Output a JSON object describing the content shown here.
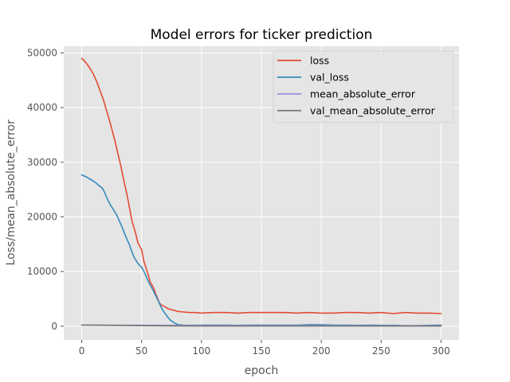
{
  "chart_data": {
    "type": "line",
    "title": "Model errors for ticker prediction",
    "xlabel": "epoch",
    "ylabel": "Loss/mean_absolute_error",
    "xlim": [
      -15,
      315
    ],
    "ylim": [
      -2500,
      51250
    ],
    "xticks": [
      0,
      50,
      100,
      150,
      200,
      250,
      300
    ],
    "yticks": [
      0,
      10000,
      20000,
      30000,
      40000,
      50000
    ],
    "grid": true,
    "legend_position": "upper right",
    "style": "ggplot",
    "series": [
      {
        "name": "loss",
        "color": "#E24A33",
        "x": [
          0,
          2,
          5,
          8,
          10,
          13,
          15,
          18,
          20,
          23,
          25,
          28,
          30,
          33,
          35,
          38,
          40,
          42,
          45,
          47,
          50,
          52,
          55,
          57,
          60,
          62,
          65,
          67,
          70,
          72,
          75,
          77,
          80,
          85,
          90,
          95,
          100,
          110,
          120,
          130,
          140,
          150,
          160,
          170,
          180,
          190,
          200,
          210,
          220,
          230,
          240,
          250,
          260,
          270,
          280,
          290,
          300
        ],
        "y": [
          49000,
          48600,
          47800,
          46800,
          46000,
          44500,
          43300,
          41500,
          40000,
          37800,
          36200,
          33700,
          31800,
          29000,
          26800,
          23800,
          21500,
          19200,
          17000,
          15200,
          14000,
          11800,
          9800,
          8200,
          7000,
          5800,
          4200,
          3800,
          3500,
          3200,
          3000,
          2900,
          2700,
          2600,
          2500,
          2500,
          2400,
          2500,
          2500,
          2400,
          2500,
          2500,
          2500,
          2500,
          2400,
          2500,
          2400,
          2400,
          2500,
          2500,
          2400,
          2500,
          2300,
          2500,
          2400,
          2400,
          2300
        ]
      },
      {
        "name": "val_loss",
        "color": "#348ABD",
        "x": [
          0,
          2,
          4,
          6,
          8,
          10,
          12,
          14,
          16,
          18,
          20,
          22,
          24,
          26,
          28,
          30,
          32,
          34,
          36,
          38,
          40,
          42,
          44,
          46,
          48,
          50,
          52,
          54,
          56,
          58,
          60,
          62,
          64,
          66,
          68,
          70,
          72,
          74,
          76,
          78,
          80,
          85,
          90,
          100,
          110,
          120,
          130,
          140,
          150,
          160,
          170,
          180,
          190,
          200,
          210,
          220,
          230,
          240,
          250,
          260,
          270,
          280,
          290,
          300
        ],
        "y": [
          27700,
          27500,
          27300,
          27000,
          26800,
          26500,
          26200,
          25800,
          25500,
          25000,
          24000,
          23000,
          22200,
          21500,
          20800,
          20000,
          19000,
          18000,
          16800,
          15800,
          14800,
          13500,
          12500,
          11800,
          11200,
          10800,
          10000,
          9000,
          8000,
          7200,
          6400,
          5500,
          4600,
          3600,
          2800,
          2200,
          1600,
          1100,
          800,
          500,
          300,
          200,
          150,
          200,
          200,
          200,
          150,
          200,
          200,
          200,
          200,
          200,
          250,
          250,
          200,
          200,
          150,
          200,
          150,
          150,
          100,
          100,
          150,
          200
        ]
      },
      {
        "name": "mean_absolute_error",
        "color": "#988ED5",
        "x": [
          0,
          50,
          100,
          150,
          200,
          250,
          300
        ],
        "y": [
          210,
          170,
          120,
          100,
          90,
          85,
          80
        ]
      },
      {
        "name": "val_mean_absolute_error",
        "color": "#777777",
        "x": [
          0,
          25,
          50,
          75,
          100,
          150,
          200,
          250,
          300
        ],
        "y": [
          190,
          150,
          100,
          60,
          40,
          35,
          35,
          30,
          30
        ]
      }
    ]
  }
}
